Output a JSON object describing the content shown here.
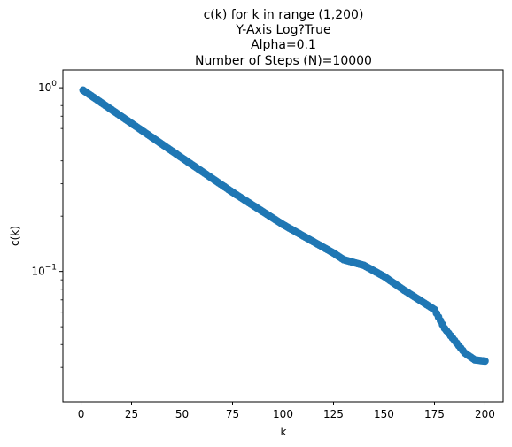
{
  "chart_data": {
    "type": "scatter",
    "title_lines": [
      "c(k) for k in range (1,200)",
      "Y-Axis Log?True",
      "Alpha=0.1",
      "Number of Steps (N)=10000"
    ],
    "xlabel": "k",
    "ylabel": "c(k)",
    "xlim": [
      -9,
      209
    ],
    "ylim": [
      0.0195,
      1.25
    ],
    "yscale": "log",
    "x_ticks": [
      0,
      25,
      50,
      75,
      100,
      125,
      150,
      175,
      200
    ],
    "y_major_ticks": [
      {
        "value": 1,
        "label": "10",
        "exp": "0"
      },
      {
        "value": 0.1,
        "label": "10",
        "exp": "−1"
      }
    ],
    "y_minor_ticks": [
      0.03,
      0.04,
      0.05,
      0.06,
      0.07,
      0.08,
      0.09,
      0.2,
      0.3,
      0.4,
      0.5,
      0.6,
      0.7,
      0.8,
      0.9
    ],
    "grid": false,
    "marker_color": "#1f77b4",
    "series": [
      {
        "x_range": [
          1,
          200
        ],
        "anchors": [
          [
            1,
            0.97
          ],
          [
            25,
            0.64
          ],
          [
            50,
            0.415
          ],
          [
            75,
            0.27
          ],
          [
            100,
            0.18
          ],
          [
            125,
            0.126
          ],
          [
            130,
            0.116
          ],
          [
            140,
            0.108
          ],
          [
            150,
            0.094
          ],
          [
            160,
            0.079
          ],
          [
            175,
            0.062
          ],
          [
            180,
            0.049
          ],
          [
            185,
            0.042
          ],
          [
            190,
            0.036
          ],
          [
            195,
            0.033
          ],
          [
            200,
            0.0325
          ]
        ]
      }
    ]
  }
}
